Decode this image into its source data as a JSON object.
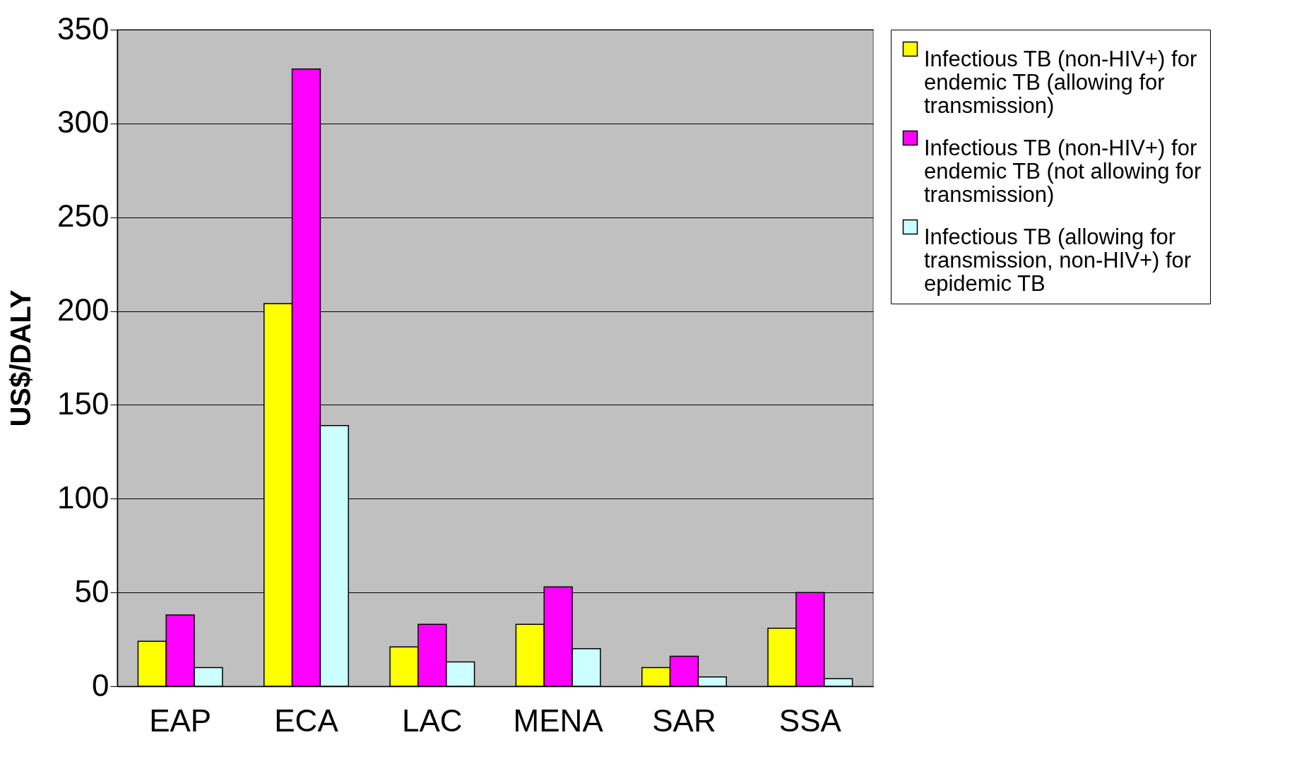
{
  "chart_data": {
    "type": "bar",
    "ylabel": "US$/DALY",
    "categories": [
      "EAP",
      "ECA",
      "LAC",
      "MENA",
      "SAR",
      "SSA"
    ],
    "series": [
      {
        "name": "Infectious TB (non-HIV+) for endemic TB (allowing for transmission)",
        "color": "#ffff00",
        "values": [
          24,
          204,
          21,
          33,
          10,
          31
        ]
      },
      {
        "name": "Infectious TB (non-HIV+) for endemic TB (not allowing for transmission)",
        "color": "#ff00ff",
        "values": [
          38,
          329,
          33,
          53,
          16,
          50
        ]
      },
      {
        "name": "Infectious TB (allowing for transmission, non-HIV+) for epidemic TB",
        "color": "#ccffff",
        "values": [
          10,
          139,
          13,
          20,
          5,
          4
        ]
      }
    ],
    "ylim": [
      0,
      350
    ],
    "yticks": [
      0,
      50,
      100,
      150,
      200,
      250,
      300,
      350
    ],
    "grid": "y",
    "legend": "right"
  }
}
